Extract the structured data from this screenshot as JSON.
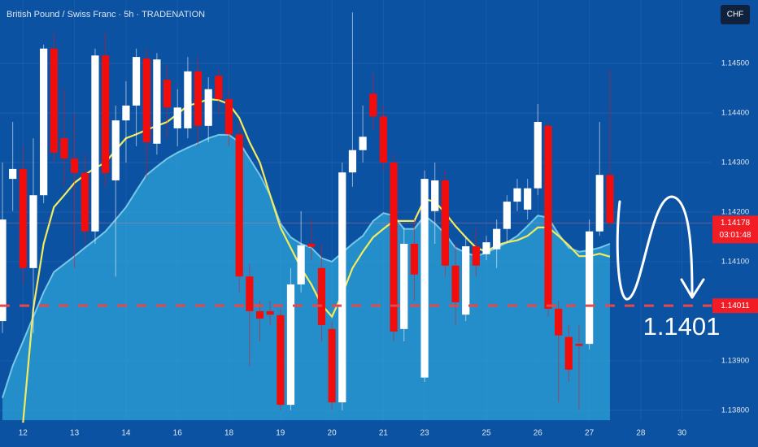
{
  "chart_data": {
    "type": "candlestick",
    "title": "British Pound / Swiss Franc · 5h · TRADENATION",
    "currency": "CHF",
    "up_color": "#ffffff",
    "down_color": "#f20d0d",
    "grid": true,
    "ylim": [
      1.1378,
      1.14628
    ],
    "yticks": [
      {
        "value": 1.145,
        "label": "1.14500"
      },
      {
        "value": 1.144,
        "label": "1.14400"
      },
      {
        "value": 1.143,
        "label": "1.14300"
      },
      {
        "value": 1.142,
        "label": "1.14200"
      },
      {
        "value": 1.141,
        "label": "1.14100"
      },
      {
        "value": 1.139,
        "label": "1.13900"
      },
      {
        "value": 1.138,
        "label": "1.13800"
      }
    ],
    "categories": [
      null,
      null,
      "12",
      null,
      null,
      null,
      null,
      "13",
      null,
      null,
      null,
      null,
      "14",
      null,
      null,
      null,
      null,
      "16",
      null,
      null,
      null,
      null,
      "18",
      null,
      null,
      null,
      null,
      "19",
      null,
      null,
      null,
      null,
      "20",
      null,
      null,
      null,
      null,
      "21",
      null,
      null,
      null,
      "23",
      null,
      null,
      null,
      null,
      null,
      "25",
      null,
      null,
      null,
      null,
      "26",
      null,
      null,
      null,
      null,
      "27",
      null,
      null,
      null,
      null,
      "28",
      null,
      null,
      null,
      "30"
    ],
    "open": [
      1.1398,
      1.14267,
      1.14287,
      1.14087,
      1.14234,
      1.1453,
      1.14349,
      1.14308,
      1.14279,
      1.14161,
      1.14516,
      1.14264,
      1.14385,
      1.14415,
      1.1451,
      1.14338,
      1.14467,
      1.14369,
      1.14369,
      1.14484,
      1.14374,
      1.14475,
      1.14428,
      1.14357,
      1.1407,
      1.14,
      1.14,
      1.13992,
      1.13811,
      1.14054,
      1.14136,
      1.14087,
      1.13964,
      1.13816,
      1.1428,
      1.14325,
      1.14439,
      1.14393,
      1.143,
      1.13964,
      1.14136,
      1.13866,
      1.14202,
      1.14264,
      1.14092,
      1.13993,
      1.14131,
      1.14115,
      1.14125,
      1.14166,
      1.14221,
      1.14205,
      1.14248,
      1.14374,
      1.14005,
      1.13948,
      1.13934,
      1.13934,
      1.14161,
      1.14275,
      null,
      null,
      null,
      null,
      null,
      null,
      null
    ],
    "high": [
      1.143,
      1.14382,
      1.14333,
      1.14349,
      1.14538,
      1.14562,
      1.14448,
      1.14398,
      1.14316,
      1.1453,
      1.14562,
      1.14415,
      1.14464,
      1.1453,
      1.1453,
      1.14521,
      1.14497,
      1.14448,
      1.14513,
      1.14513,
      1.14472,
      1.14489,
      1.14448,
      1.14382,
      1.14095,
      1.14021,
      1.14021,
      1.14005,
      1.14087,
      1.14202,
      1.14185,
      1.14136,
      1.1398,
      1.143,
      1.14603,
      1.14415,
      1.1448,
      1.14415,
      1.14316,
      1.14169,
      1.14185,
      1.14284,
      1.143,
      1.14284,
      1.14136,
      1.14152,
      1.14169,
      1.14152,
      1.14185,
      1.14234,
      1.14267,
      1.14267,
      1.14418,
      1.14382,
      1.14021,
      1.13972,
      1.13972,
      1.14185,
      1.14382,
      1.14489,
      null,
      null,
      null,
      null,
      null,
      null,
      null
    ],
    "low": [
      1.13956,
      1.14202,
      1.14054,
      1.13956,
      1.14218,
      1.143,
      1.14251,
      1.14087,
      1.14136,
      1.14136,
      1.14251,
      1.1407,
      1.143,
      1.14333,
      1.14267,
      1.14316,
      1.14349,
      1.14333,
      1.14349,
      1.14333,
      1.14341,
      1.14398,
      1.14333,
      1.14038,
      1.1389,
      1.13939,
      1.13972,
      1.138,
      1.138,
      1.14038,
      1.14103,
      1.13939,
      1.138,
      1.138,
      1.14251,
      1.143,
      1.14366,
      1.14284,
      1.13939,
      1.13939,
      1.14021,
      1.13857,
      1.14136,
      1.1407,
      1.13972,
      1.1398,
      1.1407,
      1.14103,
      1.14087,
      1.14136,
      1.14202,
      1.14185,
      1.14234,
      1.13989,
      1.13816,
      1.13857,
      1.138,
      1.13923,
      1.14152,
      1.14169,
      null,
      null,
      null,
      null,
      null,
      null,
      null
    ],
    "close": [
      1.14185,
      1.14287,
      1.14087,
      1.14234,
      1.1453,
      1.1432,
      1.14308,
      1.14279,
      1.14161,
      1.14516,
      1.14279,
      1.14385,
      1.14415,
      1.14513,
      1.14341,
      1.14508,
      1.14411,
      1.14411,
      1.14484,
      1.14374,
      1.14448,
      1.14428,
      1.14357,
      1.1407,
      1.14,
      1.13985,
      1.13993,
      1.13811,
      1.14054,
      1.14133,
      1.1413,
      1.13972,
      1.13816,
      1.1428,
      1.14325,
      1.14352,
      1.14393,
      1.143,
      1.13959,
      1.14136,
      1.14074,
      1.14267,
      1.14264,
      1.14092,
      1.14018,
      1.14131,
      1.14092,
      1.14139,
      1.14166,
      1.14221,
      1.14248,
      1.14248,
      1.14382,
      1.14005,
      1.13951,
      1.13882,
      1.1393,
      1.14161,
      1.14275,
      1.14178,
      null,
      null,
      null,
      null,
      null,
      null,
      null
    ],
    "overlays": [
      {
        "kind": "area",
        "color": "#2ea3d8",
        "line_color": "#8fdcf2",
        "values": [
          1.13825,
          1.1389,
          1.13939,
          1.13989,
          1.14038,
          1.14079,
          1.14095,
          1.14111,
          1.14128,
          1.14144,
          1.14161,
          1.14185,
          1.1421,
          1.14243,
          1.14275,
          1.14292,
          1.14308,
          1.1432,
          1.1433,
          1.14339,
          1.14349,
          1.14356,
          1.14356,
          1.14341,
          1.14308,
          1.14275,
          1.14234,
          1.14177,
          1.14149,
          1.14136,
          1.14128,
          1.14107,
          1.141,
          1.14118,
          1.14136,
          1.14152,
          1.14182,
          1.14198,
          1.14193,
          1.14166,
          1.14166,
          1.14193,
          1.14177,
          1.14156,
          1.14128,
          1.14118,
          1.14111,
          1.14118,
          1.14128,
          1.14139,
          1.14152,
          1.14172,
          1.14193,
          1.14189,
          1.14156,
          1.14128,
          1.1412,
          1.14123,
          1.14128,
          1.14136,
          null,
          null,
          null,
          null,
          null,
          null,
          null
        ]
      },
      {
        "kind": "line",
        "color": "#f3ea5c",
        "values": [
          null,
          null,
          1.13775,
          1.14005,
          1.14136,
          1.1421,
          1.14234,
          1.14259,
          1.14275,
          1.14289,
          1.143,
          1.14325,
          1.14349,
          1.14357,
          1.14366,
          1.14374,
          1.14382,
          1.14398,
          1.14415,
          1.1442,
          1.14428,
          1.14426,
          1.14418,
          1.1439,
          1.14341,
          1.143,
          1.14234,
          1.14169,
          1.14128,
          1.14087,
          1.14054,
          1.14013,
          1.13989,
          1.14034,
          1.14087,
          1.1412,
          1.14149,
          1.14166,
          1.14182,
          1.14182,
          1.14182,
          1.14226,
          1.14221,
          1.14198,
          1.14172,
          1.14149,
          1.14128,
          1.1412,
          1.14133,
          1.14139,
          1.14143,
          1.14152,
          1.14169,
          1.14169,
          1.14152,
          1.14133,
          1.14111,
          1.14111,
          1.14116,
          1.1411,
          null,
          null,
          null,
          null,
          null,
          null,
          null
        ]
      }
    ],
    "last_price": {
      "value": 1.14178,
      "label": "1.14178"
    },
    "countdown": "03:01:48",
    "level": {
      "value": 1.14011,
      "label": "1.14011"
    },
    "annotation": "1.1401"
  }
}
